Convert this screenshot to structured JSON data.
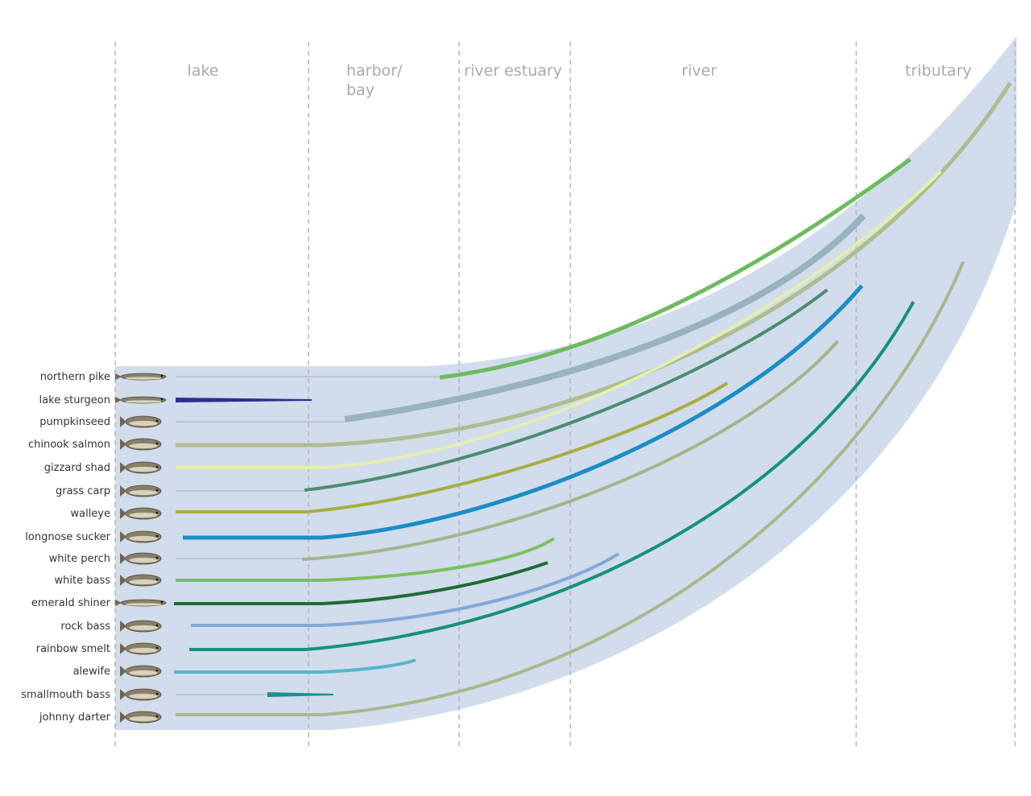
{
  "zones": [
    {
      "name": "lake"
    },
    {
      "name": "harbor/\nbay"
    },
    {
      "name": "river estuary"
    },
    {
      "name": "river"
    },
    {
      "name": "tributary"
    }
  ],
  "colors": {
    "background_band": "#d1dcec",
    "divider": "#b5b5b5",
    "zone_label": "#a9a9a9",
    "connector": "#b8b8b8"
  },
  "fish": [
    {
      "name": "northern pike",
      "icon": "northern-pike-fish-icon",
      "color": "#6dbb5f"
    },
    {
      "name": "lake sturgeon",
      "icon": "lake-sturgeon-fish-icon",
      "color": "#2a2f8c"
    },
    {
      "name": "pumpkinseed",
      "icon": "pumpkinseed-fish-icon",
      "color": "#98b3bd"
    },
    {
      "name": "chinook salmon",
      "icon": "chinook-salmon-fish-icon",
      "color": "#aebc90"
    },
    {
      "name": "gizzard shad",
      "icon": "gizzard-shad-fish-icon",
      "color": "#e6eeb0"
    },
    {
      "name": "grass carp",
      "icon": "grass-carp-fish-icon",
      "color": "#4c8c72"
    },
    {
      "name": "walleye",
      "icon": "walleye-fish-icon",
      "color": "#a9ad3e"
    },
    {
      "name": "longnose sucker",
      "icon": "longnose-sucker-fish-icon",
      "color": "#1a8dc4"
    },
    {
      "name": "white perch",
      "icon": "white-perch-fish-icon",
      "color": "#a3b58a"
    },
    {
      "name": "white bass",
      "icon": "white-bass-fish-icon",
      "color": "#79c25c"
    },
    {
      "name": "emerald shiner",
      "icon": "emerald-shiner-fish-icon",
      "color": "#1f6b35"
    },
    {
      "name": "rock bass",
      "icon": "rock-bass-fish-icon",
      "color": "#82a8d8"
    },
    {
      "name": "rainbow smelt",
      "icon": "rainbow-smelt-fish-icon",
      "color": "#15917a"
    },
    {
      "name": "alewife",
      "icon": "alewife-fish-icon",
      "color": "#55b7cc"
    },
    {
      "name": "smallmouth bass",
      "icon": "smallmouth-bass-fish-icon",
      "color": "#1e8f8f"
    },
    {
      "name": "johnny darter",
      "icon": "johnny-darter-fish-icon",
      "color": "#a9b78c"
    }
  ]
}
